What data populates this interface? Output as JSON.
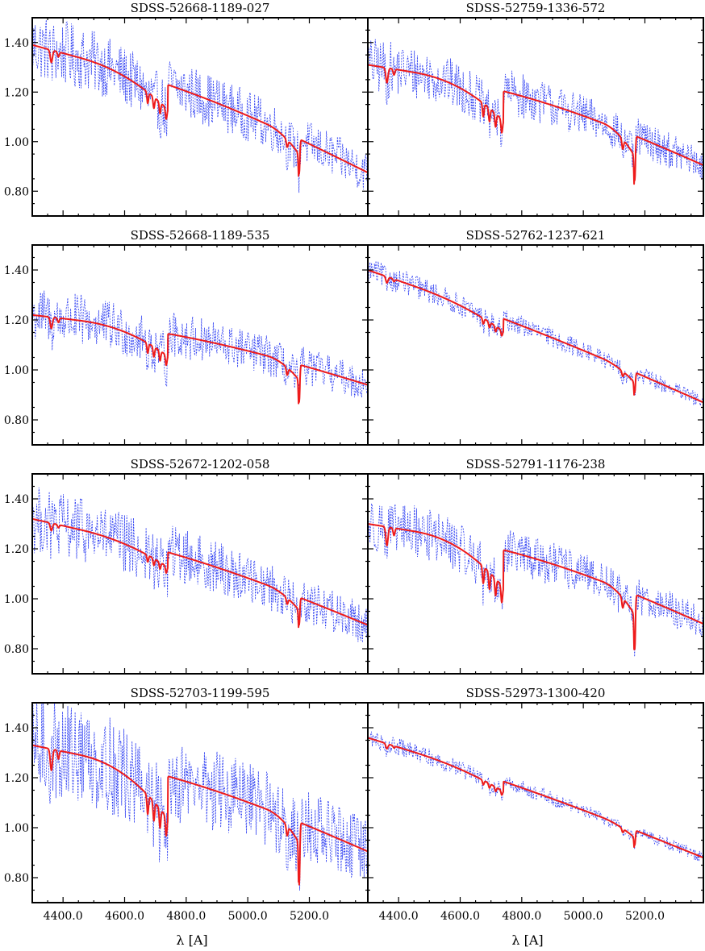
{
  "chart_data": {
    "type": "line",
    "layout": "4 rows x 2 columns, shared axes",
    "xlabel": "λ [A]",
    "xlim": [
      4300,
      5390
    ],
    "ylim": [
      0.7,
      1.5
    ],
    "x_ticks": [
      4400,
      4600,
      4800,
      5000,
      5200
    ],
    "x_tick_labels": [
      "4400.0",
      "4600.0",
      "4800.0",
      "5000.0",
      "5200.0"
    ],
    "y_ticks": [
      0.8,
      1.0,
      1.2,
      1.4
    ],
    "y_tick_labels": [
      "0.80",
      "1.00",
      "1.20",
      "1.40"
    ],
    "series_styles": {
      "observed": {
        "color": "#2b3cf2",
        "style": "dotted"
      },
      "model": {
        "color": "#ee1b1b",
        "style": "solid"
      }
    },
    "panels": [
      {
        "title": "SDSS-52668-1189-027",
        "model_start": 1.39,
        "model_end": 0.875,
        "bow": 0.05,
        "dip_4700": 0.1,
        "dip_5170": 0.14,
        "dip_5120": 0.06,
        "noise": 0.11
      },
      {
        "title": "SDSS-52759-1336-572",
        "model_start": 1.31,
        "model_end": 0.905,
        "bow": 0.06,
        "dip_4700": 0.12,
        "dip_5170": 0.18,
        "dip_5120": 0.08,
        "noise": 0.09
      },
      {
        "title": "SDSS-52668-1189-535",
        "model_start": 1.22,
        "model_end": 0.94,
        "bow": 0.04,
        "dip_4700": 0.09,
        "dip_5170": 0.15,
        "dip_5120": 0.06,
        "noise": 0.09
      },
      {
        "title": "SDSS-52762-1237-621",
        "model_start": 1.4,
        "model_end": 0.87,
        "bow": 0.02,
        "dip_4700": 0.05,
        "dip_5170": 0.08,
        "dip_5120": 0.04,
        "noise": 0.04
      },
      {
        "title": "SDSS-52672-1202-058",
        "model_start": 1.32,
        "model_end": 0.895,
        "bow": 0.04,
        "dip_4700": 0.06,
        "dip_5170": 0.11,
        "dip_5120": 0.05,
        "noise": 0.11
      },
      {
        "title": "SDSS-52791-1176-238",
        "model_start": 1.3,
        "model_end": 0.9,
        "bow": 0.06,
        "dip_4700": 0.15,
        "dip_5170": 0.22,
        "dip_5120": 0.08,
        "noise": 0.09
      },
      {
        "title": "SDSS-52703-1199-595",
        "model_start": 1.33,
        "model_end": 0.905,
        "bow": 0.05,
        "dip_4700": 0.17,
        "dip_5170": 0.25,
        "dip_5120": 0.08,
        "noise": 0.17
      },
      {
        "title": "SDSS-52973-1300-420",
        "model_start": 1.36,
        "model_end": 0.88,
        "bow": 0.02,
        "dip_4700": 0.04,
        "dip_5170": 0.06,
        "dip_5120": 0.03,
        "noise": 0.03
      }
    ]
  }
}
